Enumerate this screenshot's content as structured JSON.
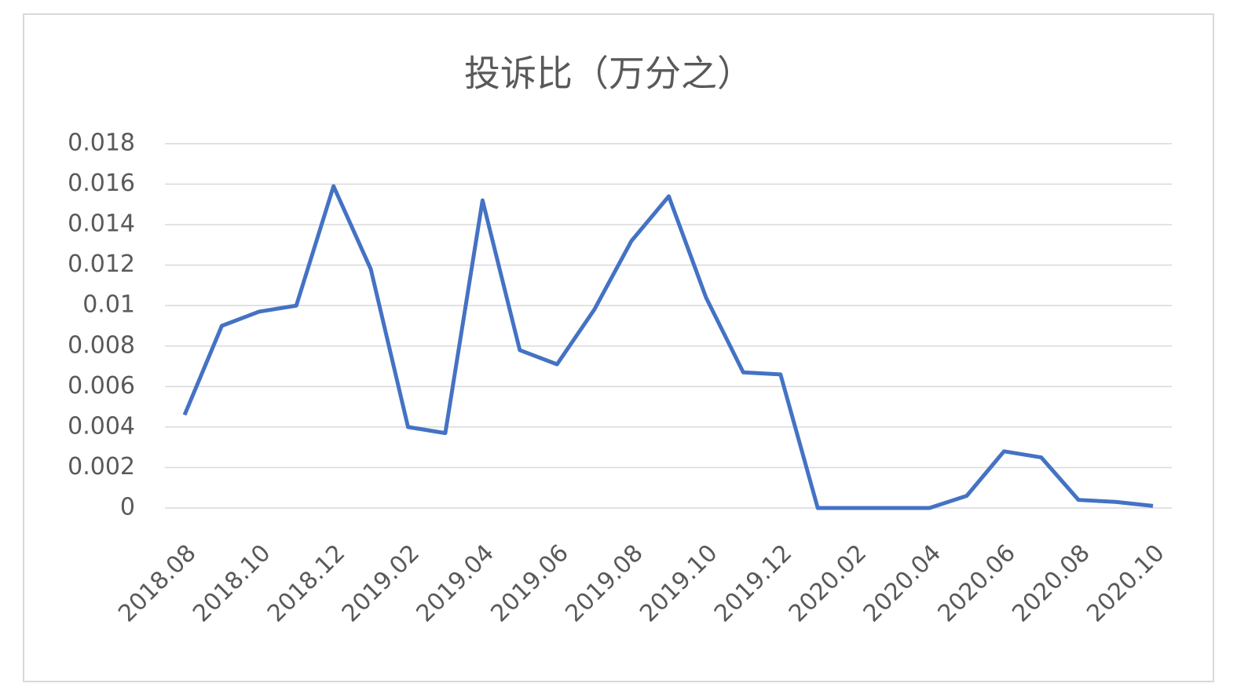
{
  "chart_data": {
    "type": "line",
    "title": "投诉比（万分之）",
    "categories": [
      "2018.08",
      null,
      "2018.10",
      null,
      "2018.12",
      null,
      "2019.02",
      null,
      "2019.04",
      null,
      "2019.06",
      null,
      "2019.08",
      null,
      "2019.10",
      null,
      "2019.12",
      null,
      "2020.02",
      null,
      "2020.04",
      null,
      "2020.06",
      null,
      "2020.08",
      null,
      "2020.10"
    ],
    "series": [
      {
        "color": "#4472c4",
        "values": [
          0.0046,
          0.009,
          0.0097,
          0.01,
          0.0159,
          0.0118,
          0.004,
          0.0037,
          0.0152,
          0.0078,
          0.0071,
          0.0098,
          0.0132,
          0.0154,
          0.0104,
          0.0067,
          0.0066,
          0,
          0,
          0,
          0,
          0.0006,
          0.0028,
          0.0025,
          0.0004,
          0.0003,
          0.0001
        ]
      }
    ],
    "ylim": [
      0,
      0.018
    ],
    "yticks": [
      0,
      0.002,
      0.004,
      0.006,
      0.008,
      0.01,
      0.012,
      0.014,
      0.016,
      0.018
    ],
    "grid": true
  }
}
